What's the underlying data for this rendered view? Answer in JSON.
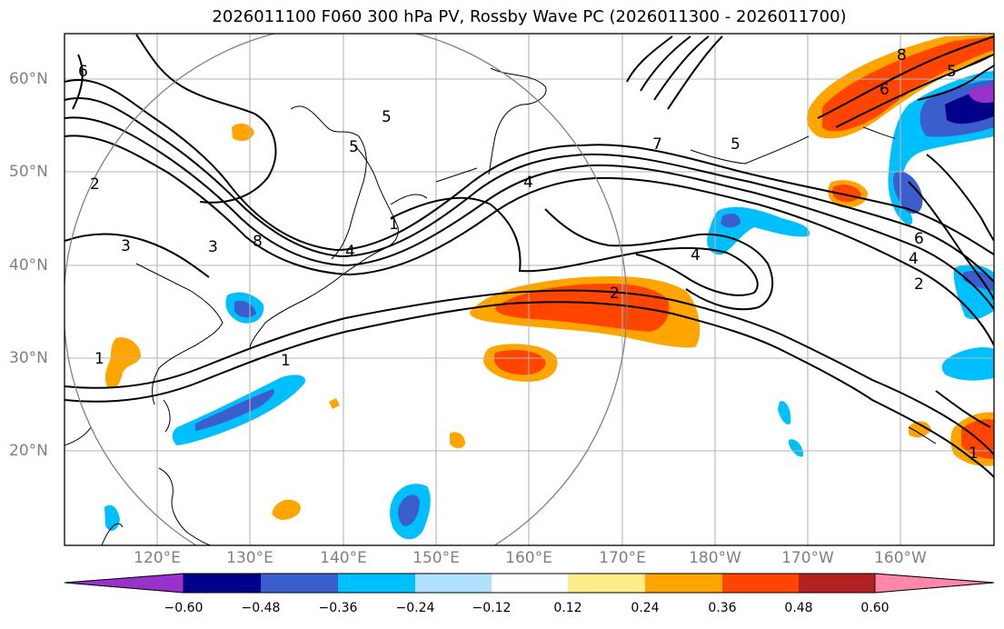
{
  "title": "2026011100 F060 300 hPa PV, Rossby Wave PC (2026011300 - 2026011700)",
  "lat_labels": [
    "60°N",
    "50°N",
    "40°N",
    "30°N",
    "20°N"
  ],
  "lon_labels": [
    "120°E",
    "130°E",
    "140°E",
    "150°E",
    "160°E",
    "170°E",
    "180°W",
    "170°W",
    "160°W"
  ],
  "colorbar": {
    "colors": [
      "#9932cc",
      "#00008b",
      "#3a5fcd",
      "#00bfff",
      "#b0e2ff",
      "#ffffff",
      "#ffec8b",
      "#ffa500",
      "#ff4500",
      "#b22222",
      "#ff88aa"
    ],
    "labels": [
      "−0.60",
      "−0.48",
      "−0.36",
      "−0.24",
      "−0.12",
      "0.12",
      "0.24",
      "0.36",
      "0.48",
      "0.60"
    ]
  },
  "contour_labels": [
    "6",
    "5",
    "4",
    "3",
    "2",
    "1",
    "1",
    "3",
    "8",
    "2",
    "4",
    "5",
    "1",
    "7",
    "5",
    "4",
    "8",
    "5",
    "6",
    "6",
    "4",
    "2",
    "1"
  ]
}
